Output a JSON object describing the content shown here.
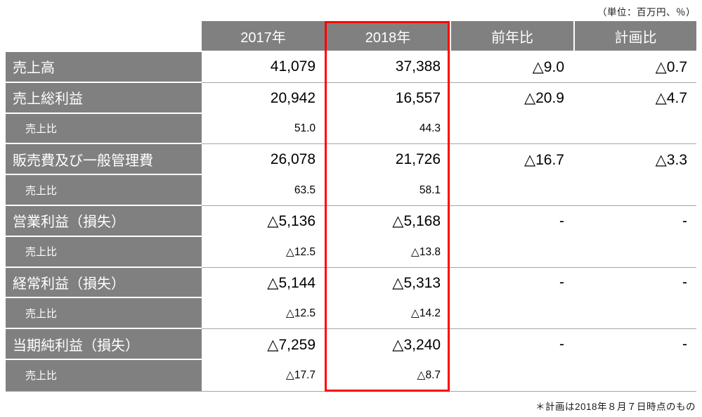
{
  "unit_note": "（単位：百万円、％）",
  "footnote": "＊計画は2018年８月７日時点のもの",
  "colors": {
    "header_bg": "#808080",
    "header_text": "#ffffff",
    "data_text": "#000000",
    "group_divider": "#a6a6a6",
    "highlight_border": "#ff0000"
  },
  "table": {
    "columns": [
      "2017年",
      "2018年",
      "前年比",
      "計画比"
    ],
    "highlighted_column": "2018年",
    "rows": [
      {
        "label": "売上高",
        "type": "main",
        "values": [
          "41,079",
          "37,388",
          "△9.0",
          "△0.7"
        ]
      },
      {
        "label": "売上総利益",
        "type": "main",
        "values": [
          "20,942",
          "16,557",
          "△20.9",
          "△4.7"
        ]
      },
      {
        "label": "売上比",
        "type": "sub",
        "values": [
          "51.0",
          "44.3",
          "",
          ""
        ]
      },
      {
        "label": "販売費及び一般管理費",
        "type": "main",
        "values": [
          "26,078",
          "21,726",
          "△16.7",
          "△3.3"
        ]
      },
      {
        "label": "売上比",
        "type": "sub",
        "values": [
          "63.5",
          "58.1",
          "",
          ""
        ]
      },
      {
        "label": "営業利益（損失）",
        "type": "main",
        "values": [
          "△5,136",
          "△5,168",
          "-",
          "-"
        ]
      },
      {
        "label": "売上比",
        "type": "sub",
        "values": [
          "△12.5",
          "△13.8",
          "",
          ""
        ]
      },
      {
        "label": "経常利益（損失）",
        "type": "main",
        "values": [
          "△5,144",
          "△5,313",
          "-",
          "-"
        ]
      },
      {
        "label": "売上比",
        "type": "sub",
        "values": [
          "△12.5",
          "△14.2",
          "",
          ""
        ]
      },
      {
        "label": "当期純利益（損失）",
        "type": "main",
        "values": [
          "△7,259",
          "△3,240",
          "-",
          "-"
        ]
      },
      {
        "label": "売上比",
        "type": "sub",
        "values": [
          "△17.7",
          "△8.7",
          "",
          ""
        ]
      }
    ]
  }
}
